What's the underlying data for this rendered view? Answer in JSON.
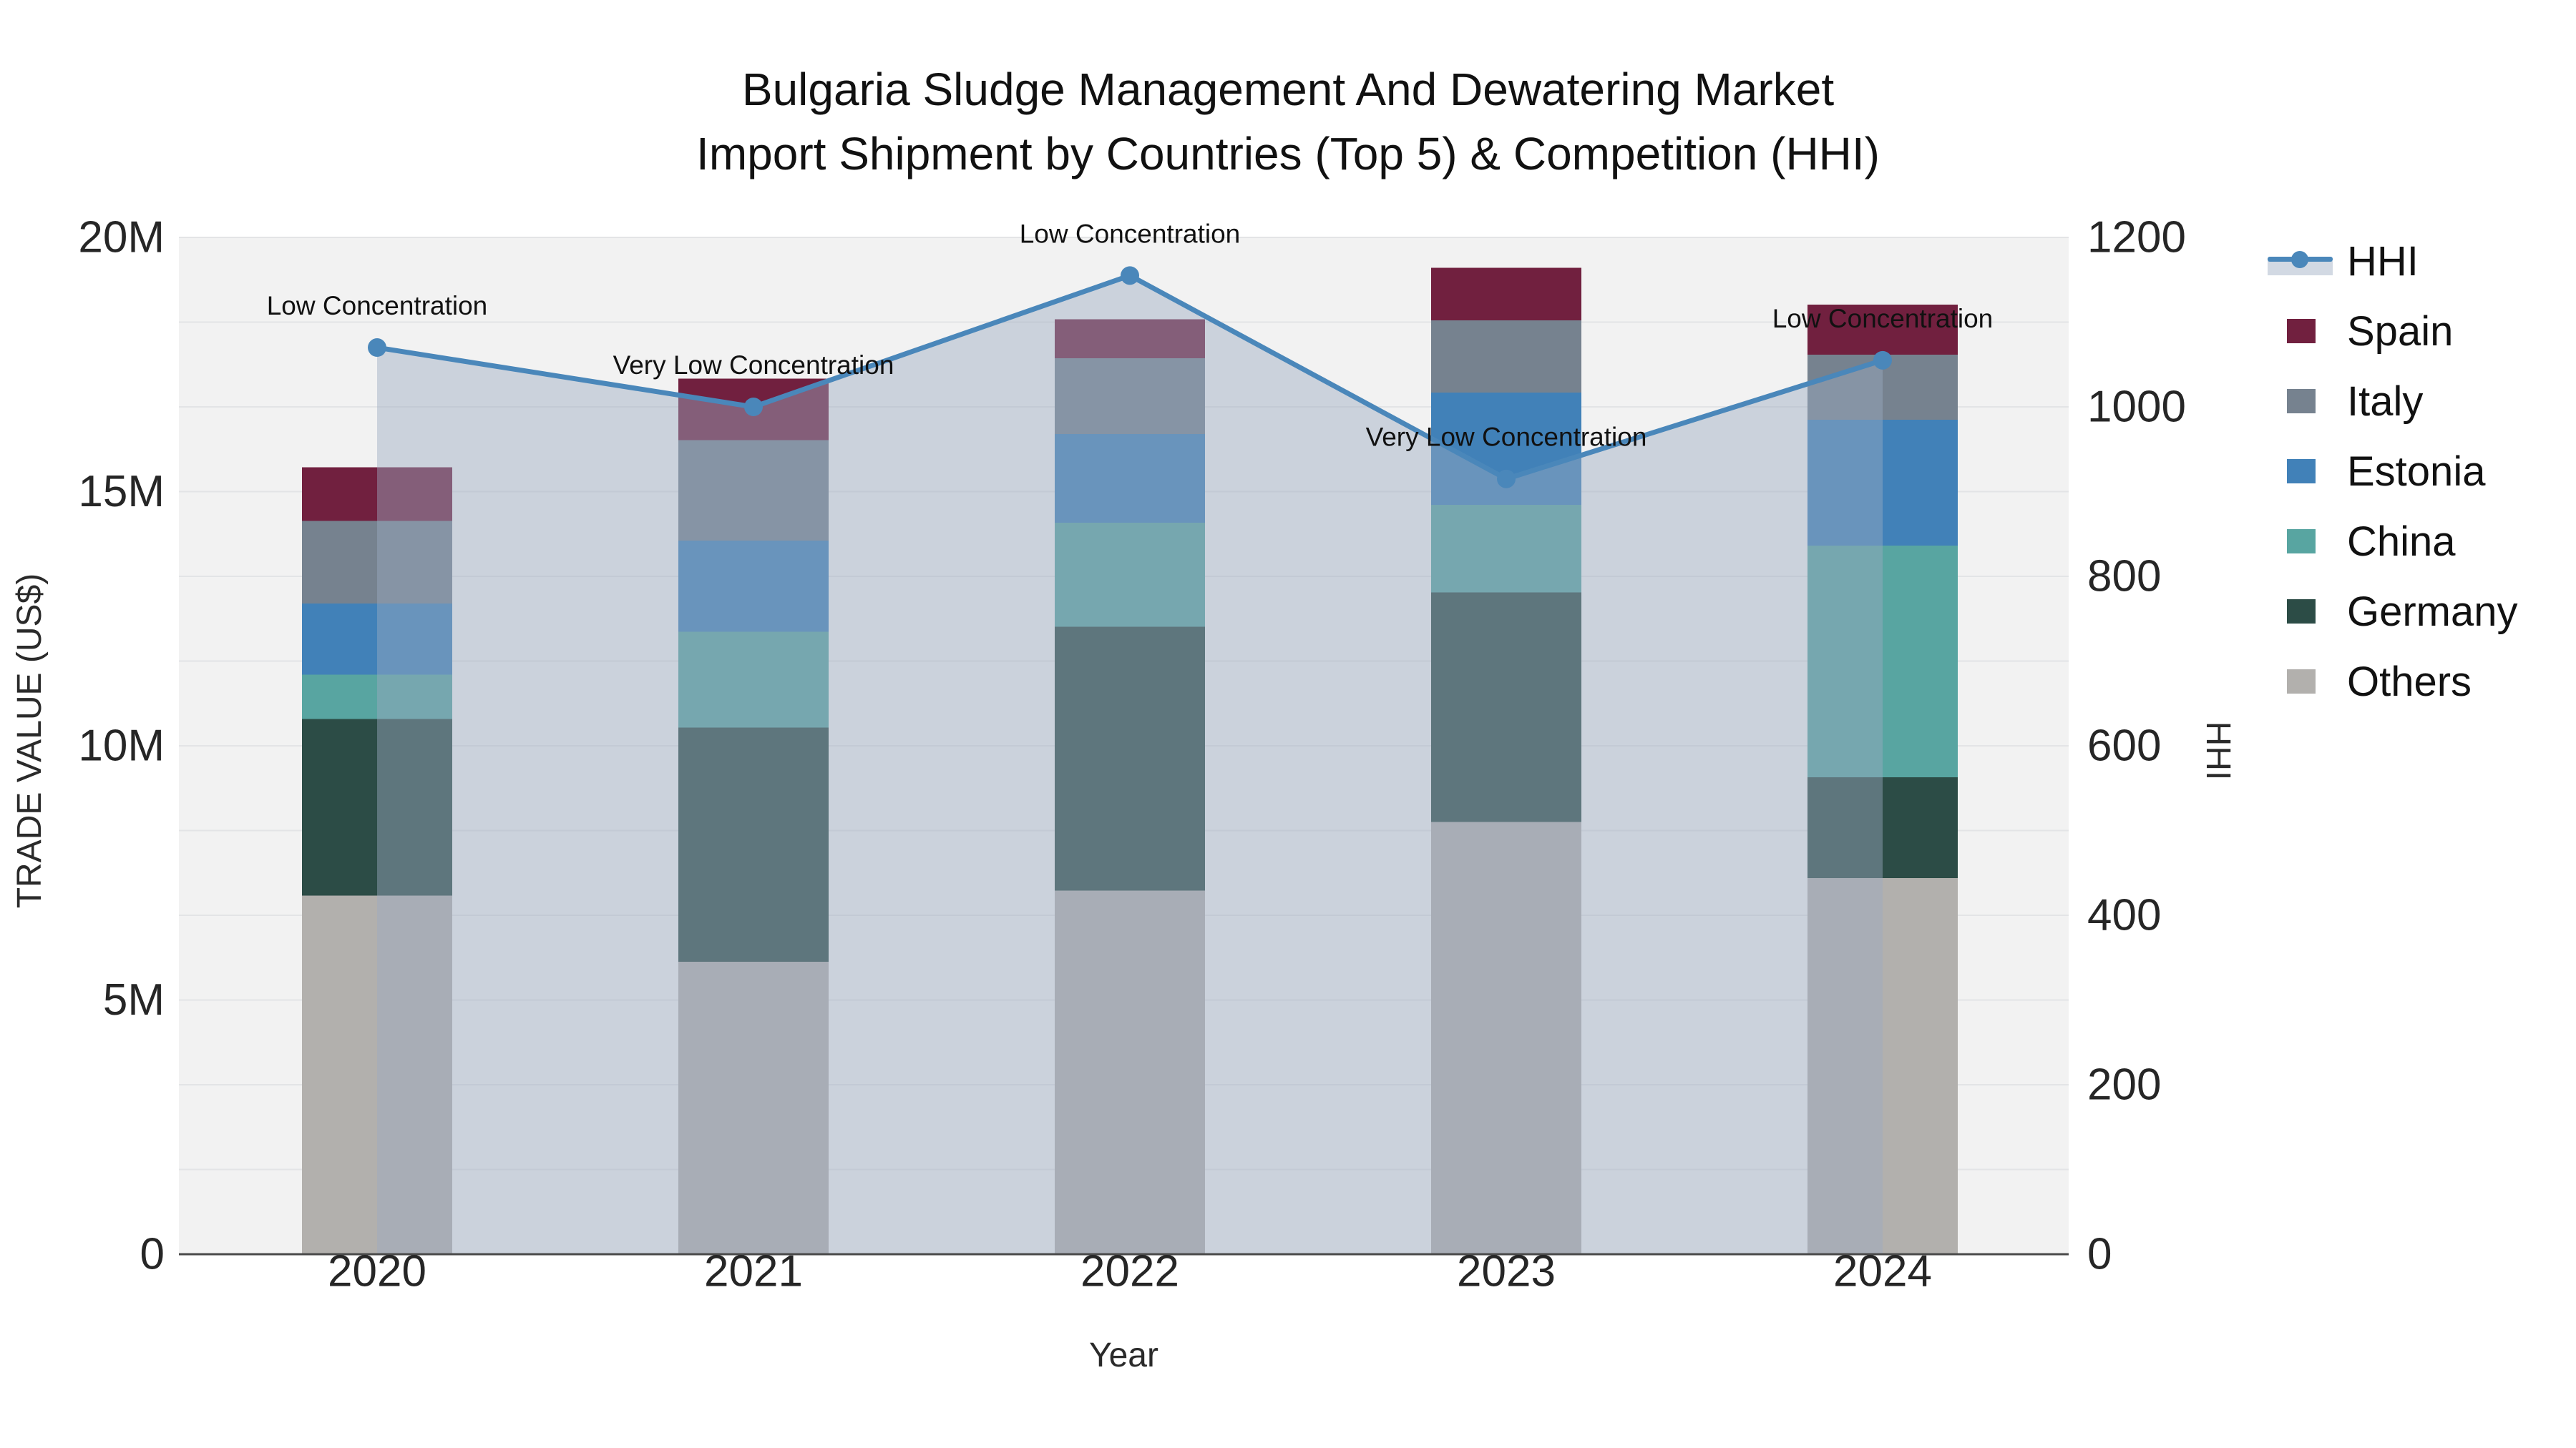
{
  "title": {
    "line1": "Bulgaria Sludge Management And Dewatering Market",
    "line2": "Import Shipment by Countries (Top 5) & Competition (HHI)"
  },
  "legend": {
    "items": [
      {
        "label": "HHI"
      },
      {
        "label": "Spain"
      },
      {
        "label": "Italy"
      },
      {
        "label": "Estonia"
      },
      {
        "label": "China"
      },
      {
        "label": "Germany"
      },
      {
        "label": "Others"
      }
    ]
  },
  "chart_data": {
    "type": "stacked-bar+line",
    "title": "Bulgaria Sludge Management And Dewatering Market — Import Shipment by Countries (Top 5) & Competition (HHI)",
    "categories": [
      "2020",
      "2021",
      "2022",
      "2023",
      "2024"
    ],
    "bar_value_unit": "M US$",
    "series": [
      {
        "name": "Spain",
        "color": "#71203f",
        "values": [
          1.06,
          1.21,
          0.77,
          1.03,
          0.99
        ]
      },
      {
        "name": "Italy",
        "color": "#76828f",
        "values": [
          1.62,
          1.97,
          1.49,
          1.42,
          1.28
        ]
      },
      {
        "name": "Estonia",
        "color": "#4181b8",
        "values": [
          1.4,
          1.8,
          1.74,
          2.21,
          2.47
        ]
      },
      {
        "name": "China",
        "color": "#58a5a1",
        "values": [
          0.87,
          1.88,
          2.05,
          1.72,
          4.56
        ]
      },
      {
        "name": "Germany",
        "color": "#2c4c46",
        "values": [
          3.48,
          4.61,
          5.19,
          4.52,
          1.98
        ]
      },
      {
        "name": "Others",
        "color": "#b2b0ad",
        "values": [
          7.05,
          5.75,
          7.15,
          8.5,
          7.4
        ]
      }
    ],
    "stack_order_bottom_to_top": [
      "Others",
      "Germany",
      "China",
      "Estonia",
      "Italy",
      "Spain"
    ],
    "bar_totals_m": [
      15.48,
      17.22,
      18.39,
      19.4,
      18.68
    ],
    "line_series": {
      "name": "HHI",
      "color": "#4a87ba",
      "area_fill": "rgba(156,170,193,0.45)",
      "axis": "right",
      "values": [
        1070,
        1000,
        1155,
        915,
        1055
      ]
    },
    "point_annotations": [
      "Low Concentration",
      "Very Low Concentration",
      "Low Concentration",
      "Very Low Concentration",
      "Low Concentration"
    ],
    "x_axis": {
      "title": "Year"
    },
    "left_axis": {
      "title": "TRADE VALUE (US$)",
      "max_m": 20,
      "ticks": [
        {
          "label": "0",
          "m": 0
        },
        {
          "label": "5M",
          "m": 5
        },
        {
          "label": "10M",
          "m": 10
        },
        {
          "label": "15M",
          "m": 15
        },
        {
          "label": "20M",
          "m": 20
        }
      ]
    },
    "right_axis": {
      "title": "HHI",
      "max": 1200,
      "gridline_step": 100,
      "ticks": [
        {
          "label": "0",
          "v": 0
        },
        {
          "label": "200",
          "v": 200
        },
        {
          "label": "400",
          "v": 400
        },
        {
          "label": "600",
          "v": 600
        },
        {
          "label": "800",
          "v": 800
        },
        {
          "label": "1000",
          "v": 1000
        },
        {
          "label": "1200",
          "v": 1200
        }
      ]
    },
    "plot_background": "#f2f2f2",
    "gridline_color": "#e3e4e6",
    "axis_line_color": "#4a4a4a",
    "tick_color": "#262626",
    "annotation_color": "#111111"
  }
}
